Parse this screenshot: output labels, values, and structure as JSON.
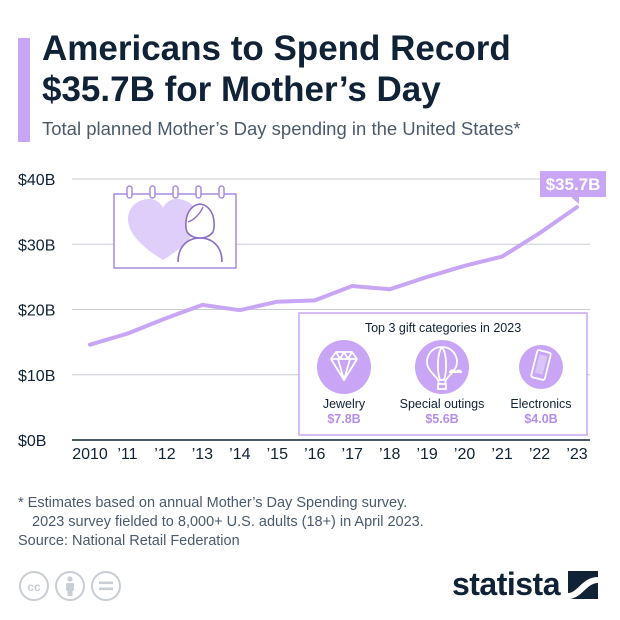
{
  "header": {
    "title_line1": "Americans to Spend Record",
    "title_line2": "$35.7B for Mother’s Day",
    "subtitle": "Total planned Mother’s Day spending in the United States*"
  },
  "colors": {
    "accent": "#c8a6f5",
    "line": "#c8a6f5",
    "grid": "#c9ced4",
    "text": "#0f2236",
    "muted": "#4a5a6b"
  },
  "chart_data": {
    "type": "line",
    "x": [
      "2010",
      "’11",
      "’12",
      "’13",
      "’14",
      "’15",
      "’16",
      "’17",
      "’18",
      "’19",
      "’20",
      "’21",
      "’22",
      "’23"
    ],
    "values": [
      14.6,
      16.3,
      18.6,
      20.7,
      19.9,
      21.2,
      21.4,
      23.6,
      23.1,
      25.0,
      26.7,
      28.1,
      31.7,
      35.7
    ],
    "ylim": [
      0,
      40
    ],
    "y_ticks": [
      0,
      10,
      20,
      30,
      40
    ],
    "y_tick_labels": [
      "$0B",
      "$10B",
      "$20B",
      "$30B",
      "$40B"
    ],
    "unit": "billion USD",
    "grid": true,
    "callout": "$35.7B"
  },
  "inset": {
    "title": "Top 3 gift categories in 2023",
    "items": [
      {
        "label": "Jewelry",
        "value": "$7.8B",
        "icon": "diamond-icon"
      },
      {
        "label": "Special outings",
        "value": "$5.6B",
        "icon": "hot-air-balloon-icon"
      },
      {
        "label": "Electronics",
        "value": "$4.0B",
        "icon": "smartphone-icon"
      }
    ]
  },
  "decor": {
    "calendar_icon": "calendar-mother-heart-icon"
  },
  "notes": {
    "line1": "* Estimates based on annual Mother’s Day Spending survey.",
    "line2": "2023 survey fielded to 8,000+ U.S. adults (18+) in April 2023.",
    "source": "Source: National Retail Federation"
  },
  "footer": {
    "icons": [
      "creative-commons-icon",
      "attribution-icon",
      "no-derivatives-icon"
    ],
    "logo": "statista"
  }
}
